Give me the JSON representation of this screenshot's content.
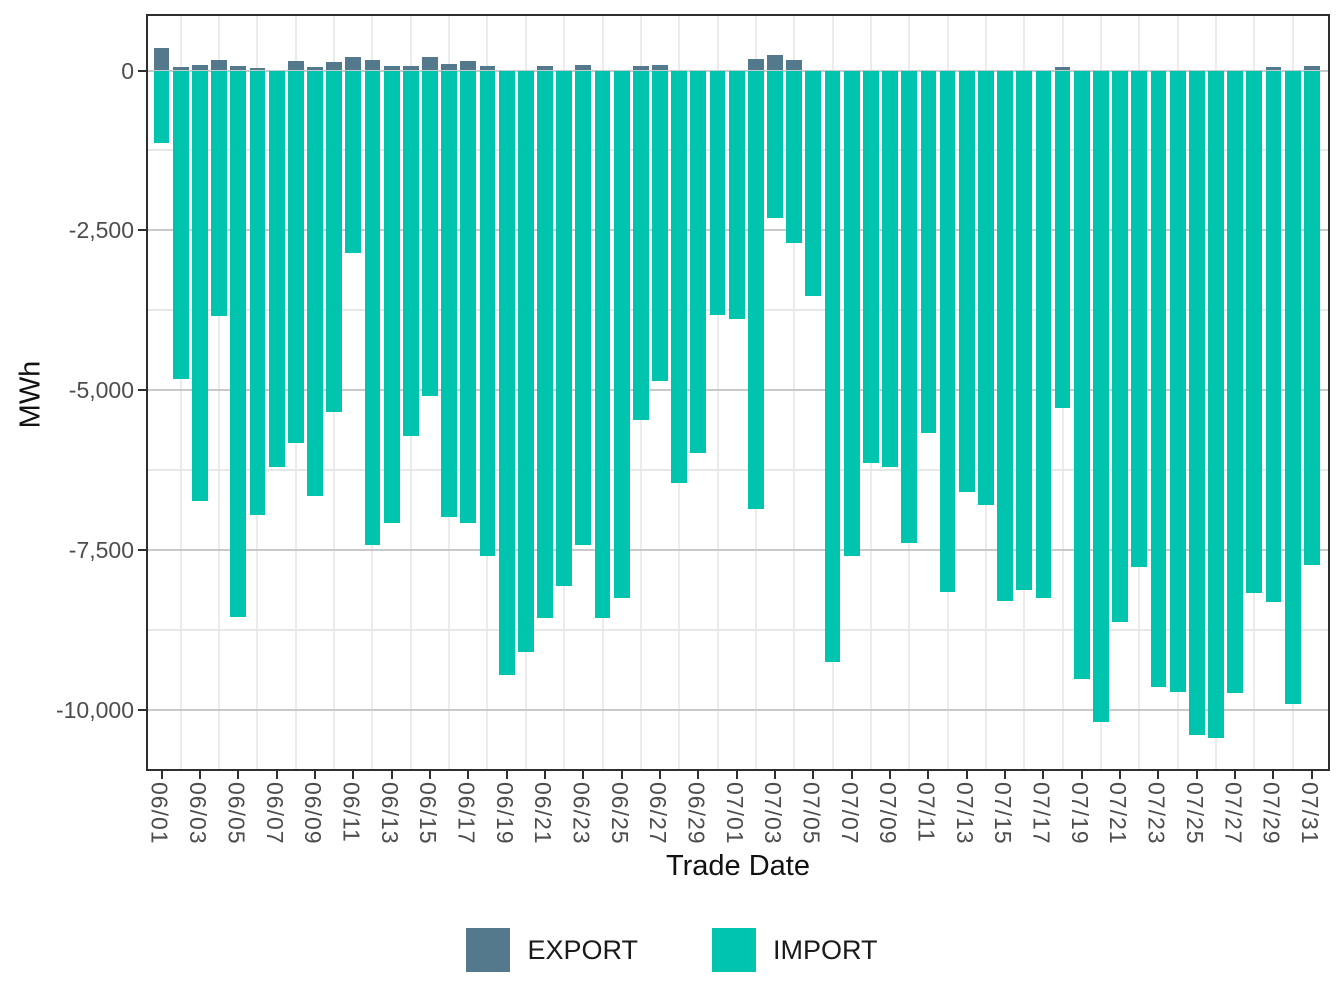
{
  "chart_data": {
    "type": "bar",
    "stacked": true,
    "title": "",
    "xlabel": "Trade Date",
    "ylabel": "MWh",
    "ylim": [
      -10950,
      880
    ],
    "grid": {
      "major": "#c9c9c9",
      "minor": "#e7e7e7",
      "vertical": "#ebebeb",
      "gridlines_on": true
    },
    "legend": {
      "position": "bottom",
      "entries": [
        "EXPORT",
        "IMPORT"
      ]
    },
    "yticks": {
      "values": [
        0,
        -2500,
        -5000,
        -7500,
        -10000
      ],
      "labels": [
        "0",
        "-2,500",
        "-5,000",
        "-7,500",
        "-10,000"
      ]
    },
    "xticks_every": 2,
    "categories": [
      "06/01",
      "06/02",
      "06/03",
      "06/04",
      "06/05",
      "06/06",
      "06/07",
      "06/08",
      "06/09",
      "06/10",
      "06/11",
      "06/12",
      "06/13",
      "06/14",
      "06/15",
      "06/16",
      "06/17",
      "06/18",
      "06/19",
      "06/20",
      "06/21",
      "06/22",
      "06/23",
      "06/24",
      "06/25",
      "06/26",
      "06/27",
      "06/28",
      "06/29",
      "06/30",
      "07/01",
      "07/02",
      "07/03",
      "07/04",
      "07/05",
      "07/06",
      "07/07",
      "07/08",
      "07/09",
      "07/10",
      "07/11",
      "07/12",
      "07/13",
      "07/14",
      "07/15",
      "07/16",
      "07/17",
      "07/18",
      "07/19",
      "07/20",
      "07/21",
      "07/22",
      "07/23",
      "07/24",
      "07/25",
      "07/26",
      "07/27",
      "07/28",
      "07/29",
      "07/30",
      "07/31"
    ],
    "series": [
      {
        "name": "EXPORT",
        "color": "#54798c",
        "values": [
          350,
          60,
          90,
          165,
          75,
          40,
          0,
          145,
          60,
          130,
          205,
          170,
          65,
          75,
          205,
          105,
          145,
          75,
          0,
          0,
          70,
          0,
          90,
          0,
          0,
          70,
          90,
          0,
          0,
          0,
          0,
          185,
          235,
          170,
          0,
          0,
          0,
          0,
          0,
          0,
          0,
          0,
          0,
          0,
          0,
          0,
          0,
          50,
          0,
          0,
          0,
          0,
          0,
          0,
          0,
          0,
          0,
          0,
          55,
          0,
          65
        ]
      },
      {
        "name": "IMPORT",
        "color": "#00c5ae",
        "values": [
          -1130,
          -4830,
          -6740,
          -3840,
          -8550,
          -6960,
          -6200,
          -5820,
          -6650,
          -5350,
          -2860,
          -7420,
          -7080,
          -5720,
          -5090,
          -6990,
          -7080,
          -7600,
          -9460,
          -9090,
          -8560,
          -8070,
          -7420,
          -8560,
          -8260,
          -5460,
          -4850,
          -6460,
          -5980,
          -3830,
          -3880,
          -6860,
          -2300,
          -2700,
          -3530,
          -9250,
          -7600,
          -6140,
          -6200,
          -7390,
          -5670,
          -8160,
          -6600,
          -6800,
          -8300,
          -8120,
          -8260,
          -5280,
          -9520,
          -10200,
          -8630,
          -7760,
          -9640,
          -9720,
          -10390,
          -10450,
          -9740,
          -8180,
          -8310,
          -9910,
          -7740
        ]
      }
    ]
  }
}
